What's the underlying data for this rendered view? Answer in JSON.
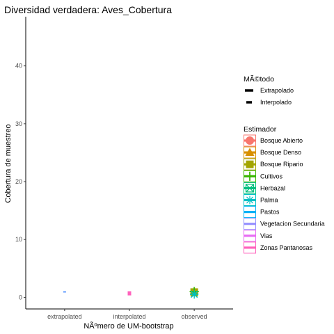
{
  "chart_data": {
    "type": "scatter",
    "title": "Diversidad verdadera: Aves_Cobertura",
    "xlabel": "NÃºmero de UM-bootstrap",
    "ylabel": "Cobertura de muestreo",
    "categories": [
      "extrapolated",
      "interpolated",
      "observed"
    ],
    "ylim": [
      -2,
      48.5
    ],
    "yticks": [
      0,
      10,
      20,
      30,
      40
    ],
    "grid": false,
    "legend_placement": "right",
    "method_legend": {
      "title": "MÃ©todo",
      "entries": [
        {
          "label": "Extrapolado",
          "line": "solid"
        },
        {
          "label": "Interpolado",
          "line": "dashed"
        }
      ]
    },
    "estimator_legend": {
      "title": "Estimador",
      "entries": [
        {
          "label": "Bosque Abierto",
          "color": "#F8766D",
          "shape": "circle"
        },
        {
          "label": "Bosque Denso",
          "color": "#D89000",
          "shape": "triangle"
        },
        {
          "label": "Bosque Ripario",
          "color": "#A3A500",
          "shape": "square"
        },
        {
          "label": "Cultivos",
          "color": "#39B600",
          "shape": "plus"
        },
        {
          "label": "Herbazal",
          "color": "#00BF7D",
          "shape": "boxcross"
        },
        {
          "label": "Palma",
          "color": "#00BFC4",
          "shape": "asterisk"
        },
        {
          "label": "Pastos",
          "color": "#00B0F6",
          "shape": "none"
        },
        {
          "label": "Vegetacion Secundaria",
          "color": "#9590FF",
          "shape": "none"
        },
        {
          "label": "Vias",
          "color": "#E76BF3",
          "shape": "none"
        },
        {
          "label": "Zonas Pantanosas",
          "color": "#FF62BC",
          "shape": "none"
        }
      ]
    },
    "marks": [
      {
        "category": "extrapolated",
        "y": 0.95,
        "color": "#619CFF",
        "kind": "tick"
      },
      {
        "category": "interpolated",
        "y": 0.7,
        "color": "#FF62BC",
        "kind": "pointrange"
      },
      {
        "category": "observed",
        "y": 0.9,
        "color": "#A3A500",
        "kind": "square"
      },
      {
        "category": "observed",
        "y": 1.0,
        "color": "#39B600",
        "kind": "plus"
      },
      {
        "category": "observed",
        "y": 0.6,
        "color": "#00BF7D",
        "kind": "asterisk"
      },
      {
        "category": "observed",
        "y": 0.5,
        "color": "#00BFC4",
        "kind": "asterisk"
      }
    ]
  }
}
